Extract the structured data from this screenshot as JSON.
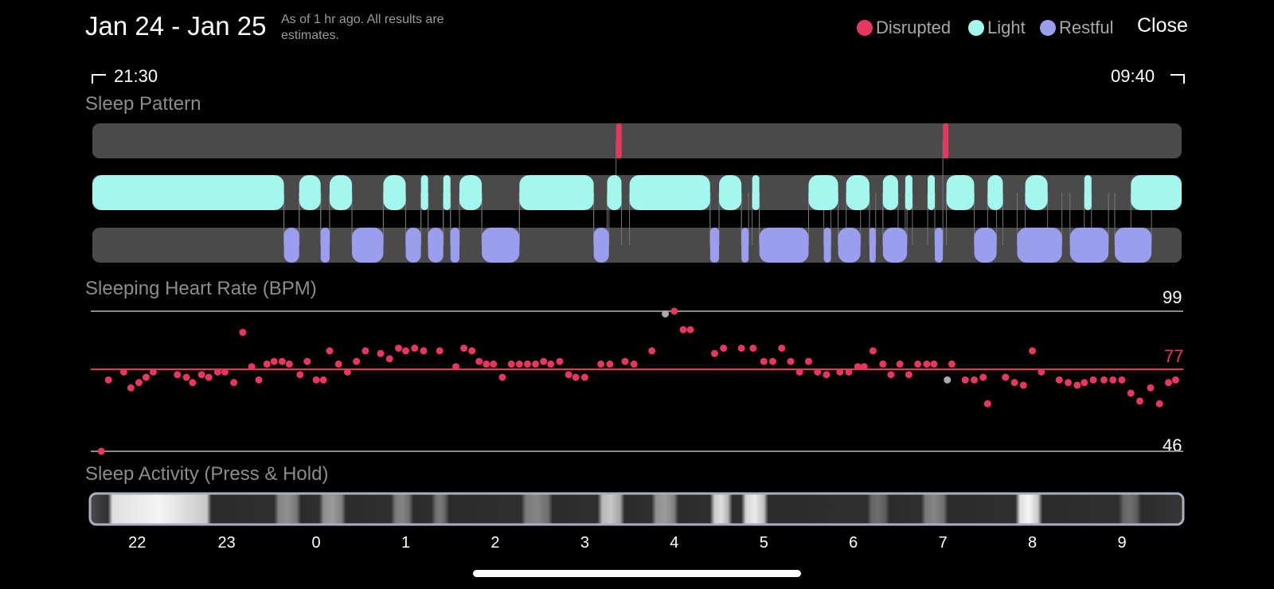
{
  "header": {
    "title": "Jan 24 - Jan 25",
    "note": "As of 1 hr ago. All results are estimates.",
    "close_label": "Close"
  },
  "legend": [
    {
      "label": "Disrupted",
      "color": "#e8375e"
    },
    {
      "label": "Light",
      "color": "#a3f7ec"
    },
    {
      "label": "Restful",
      "color": "#9b9eef"
    }
  ],
  "range": {
    "start": "21:30",
    "end": "09:40"
  },
  "sleep_pattern": {
    "label": "Sleep Pattern",
    "hours_start": 21.5,
    "hours_end": 33.667,
    "disrupted": [
      [
        27.35,
        27.41
      ],
      [
        31.0,
        31.06
      ]
    ],
    "light": [
      [
        21.5,
        23.64
      ],
      [
        23.81,
        24.05
      ],
      [
        24.15,
        24.4
      ],
      [
        24.75,
        25.0
      ],
      [
        25.17,
        25.25
      ],
      [
        25.42,
        25.5
      ],
      [
        25.6,
        25.85
      ],
      [
        26.27,
        27.1
      ],
      [
        27.25,
        27.41
      ],
      [
        27.5,
        28.4
      ],
      [
        28.5,
        28.75
      ],
      [
        28.87,
        28.95
      ],
      [
        29.5,
        29.83
      ],
      [
        29.92,
        30.18
      ],
      [
        30.33,
        30.5
      ],
      [
        30.58,
        30.66
      ],
      [
        30.83,
        30.91
      ],
      [
        31.04,
        31.35
      ],
      [
        31.5,
        31.67
      ],
      [
        31.92,
        32.17
      ],
      [
        32.58,
        32.66
      ],
      [
        33.1,
        33.667
      ]
    ],
    "restful": [
      [
        23.64,
        23.81
      ],
      [
        24.05,
        24.15
      ],
      [
        24.4,
        24.75
      ],
      [
        25.0,
        25.17
      ],
      [
        25.25,
        25.42
      ],
      [
        25.5,
        25.6
      ],
      [
        25.85,
        26.27
      ],
      [
        27.1,
        27.27
      ],
      [
        28.4,
        28.5
      ],
      [
        28.75,
        28.83
      ],
      [
        28.95,
        29.5
      ],
      [
        29.67,
        29.75
      ],
      [
        29.83,
        30.08
      ],
      [
        30.18,
        30.25
      ],
      [
        30.33,
        30.6
      ],
      [
        30.91,
        31.0
      ],
      [
        31.35,
        31.6
      ],
      [
        31.83,
        32.33
      ],
      [
        32.42,
        32.85
      ],
      [
        32.92,
        33.33
      ]
    ]
  },
  "heart_rate": {
    "label": "Sleeping Heart Rate (BPM)",
    "max_label": "99",
    "avg_label": "77",
    "min_label": "46",
    "max": 99,
    "avg": 77,
    "min": 46,
    "points": [
      [
        21.6,
        46
      ],
      [
        21.68,
        73
      ],
      [
        21.85,
        76
      ],
      [
        21.93,
        70
      ],
      [
        22.02,
        72
      ],
      [
        22.1,
        74
      ],
      [
        22.18,
        76
      ],
      [
        22.45,
        75
      ],
      [
        22.55,
        74
      ],
      [
        22.62,
        72
      ],
      [
        22.72,
        75
      ],
      [
        22.8,
        74
      ],
      [
        22.9,
        76
      ],
      [
        22.98,
        76
      ],
      [
        23.08,
        72
      ],
      [
        23.18,
        91
      ],
      [
        23.28,
        78
      ],
      [
        23.36,
        73
      ],
      [
        23.45,
        79
      ],
      [
        23.53,
        80
      ],
      [
        23.62,
        80
      ],
      [
        23.7,
        79
      ],
      [
        23.82,
        75
      ],
      [
        23.9,
        80
      ],
      [
        24.0,
        73
      ],
      [
        24.08,
        73
      ],
      [
        24.15,
        84
      ],
      [
        24.25,
        79
      ],
      [
        24.35,
        76
      ],
      [
        24.45,
        80
      ],
      [
        24.55,
        84
      ],
      [
        24.72,
        83
      ],
      [
        24.82,
        81
      ],
      [
        24.92,
        85
      ],
      [
        25.0,
        84
      ],
      [
        25.1,
        85
      ],
      [
        25.2,
        84
      ],
      [
        25.38,
        84
      ],
      [
        25.56,
        78
      ],
      [
        25.65,
        85
      ],
      [
        25.74,
        84
      ],
      [
        25.82,
        80
      ],
      [
        25.9,
        79
      ],
      [
        25.98,
        79
      ],
      [
        26.08,
        74
      ],
      [
        26.18,
        79
      ],
      [
        26.27,
        79
      ],
      [
        26.36,
        79
      ],
      [
        26.45,
        79
      ],
      [
        26.54,
        80
      ],
      [
        26.62,
        79
      ],
      [
        26.72,
        80
      ],
      [
        26.82,
        75
      ],
      [
        26.9,
        74
      ],
      [
        27.0,
        74
      ],
      [
        27.18,
        79
      ],
      [
        27.28,
        79
      ],
      [
        27.45,
        80
      ],
      [
        27.55,
        79
      ],
      [
        27.75,
        84
      ],
      [
        28.0,
        99
      ],
      [
        28.1,
        92
      ],
      [
        28.18,
        92
      ],
      [
        28.45,
        83
      ],
      [
        28.55,
        85
      ],
      [
        28.75,
        85
      ],
      [
        28.88,
        85
      ],
      [
        29.0,
        80
      ],
      [
        29.1,
        80
      ],
      [
        29.2,
        85
      ],
      [
        29.3,
        80
      ],
      [
        29.4,
        76
      ],
      [
        29.5,
        80
      ],
      [
        29.6,
        76
      ],
      [
        29.7,
        75
      ],
      [
        29.85,
        76
      ],
      [
        29.95,
        76
      ],
      [
        30.05,
        78
      ],
      [
        30.12,
        78
      ],
      [
        30.22,
        84
      ],
      [
        30.33,
        79
      ],
      [
        30.42,
        75
      ],
      [
        30.52,
        79
      ],
      [
        30.62,
        75
      ],
      [
        30.72,
        79
      ],
      [
        30.82,
        79
      ],
      [
        30.9,
        79
      ],
      [
        31.1,
        79
      ],
      [
        31.25,
        73
      ],
      [
        31.35,
        73
      ],
      [
        31.45,
        74
      ],
      [
        31.5,
        64
      ],
      [
        31.7,
        74
      ],
      [
        31.8,
        72
      ],
      [
        31.9,
        71
      ],
      [
        32.0,
        84
      ],
      [
        32.1,
        76
      ],
      [
        32.3,
        73
      ],
      [
        32.4,
        72
      ],
      [
        32.5,
        71
      ],
      [
        32.58,
        72
      ],
      [
        32.68,
        73
      ],
      [
        32.8,
        73
      ],
      [
        32.9,
        73
      ],
      [
        33.0,
        73
      ],
      [
        33.1,
        68
      ],
      [
        33.2,
        65
      ],
      [
        33.32,
        70
      ],
      [
        33.42,
        64
      ],
      [
        33.52,
        72
      ],
      [
        33.6,
        73
      ]
    ],
    "gray_points": [
      [
        27.9,
        98
      ],
      [
        31.05,
        73
      ]
    ]
  },
  "activity": {
    "label": "Sleep Activity (Press & Hold)",
    "ticks": [
      "22",
      "23",
      "0",
      "1",
      "2",
      "3",
      "4",
      "5",
      "6",
      "7",
      "8",
      "9"
    ],
    "bright": [
      [
        21.75,
        22.8
      ],
      [
        23.6,
        23.8
      ],
      [
        24.1,
        24.3
      ],
      [
        24.9,
        25.05
      ],
      [
        25.35,
        25.45
      ],
      [
        26.35,
        26.6
      ],
      [
        27.2,
        27.4
      ],
      [
        27.8,
        28.0
      ],
      [
        28.45,
        28.6
      ],
      [
        28.8,
        29.0
      ],
      [
        30.2,
        30.35
      ],
      [
        30.8,
        31.0
      ],
      [
        31.85,
        32.05
      ],
      [
        33.0,
        33.15
      ]
    ],
    "peaks": [
      [
        22.2,
        1.0
      ],
      [
        23.68,
        0.55
      ],
      [
        24.2,
        0.6
      ],
      [
        24.98,
        0.5
      ],
      [
        25.4,
        0.45
      ],
      [
        26.48,
        0.5
      ],
      [
        27.3,
        0.8
      ],
      [
        27.9,
        0.6
      ],
      [
        28.52,
        0.9
      ],
      [
        28.9,
        0.95
      ],
      [
        30.28,
        0.4
      ],
      [
        30.9,
        0.5
      ],
      [
        31.95,
        1.0
      ],
      [
        33.08,
        0.4
      ]
    ]
  }
}
